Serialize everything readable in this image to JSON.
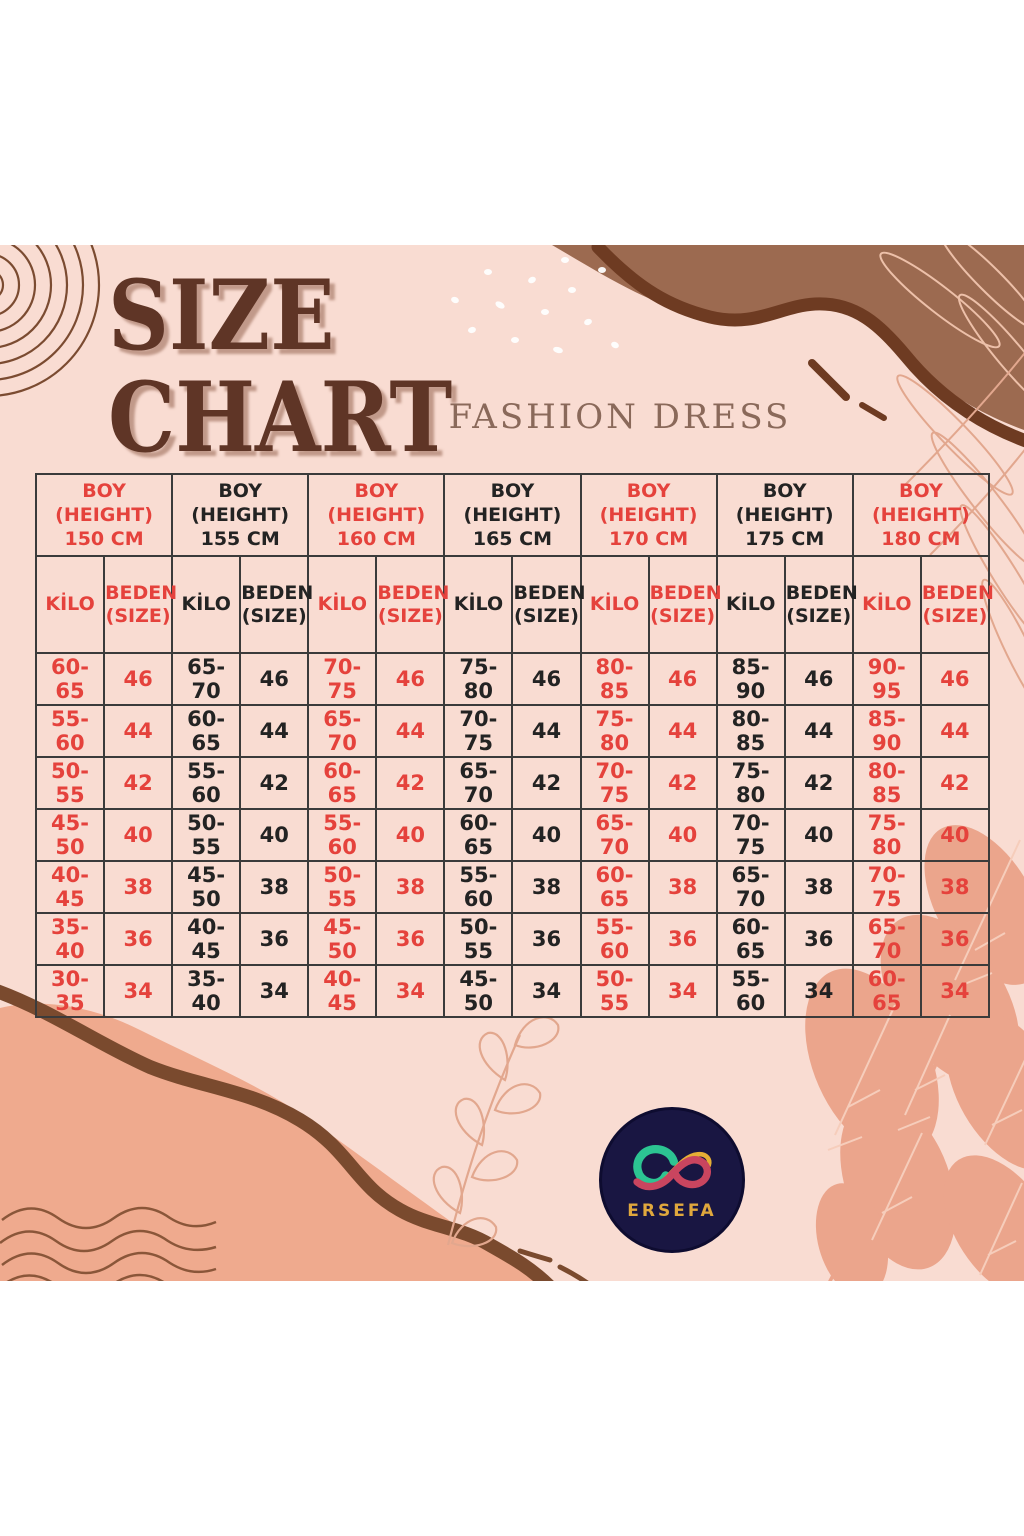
{
  "page": {
    "title_line1": "SIZE",
    "title_line2": "CHART",
    "subtitle": "FASHION DRESS"
  },
  "logo": {
    "brand": "ERSEFA"
  },
  "colors": {
    "background_pink": "#f9dcd2",
    "accent_red": "#e5423c",
    "text_black": "#232323",
    "title_brown": "#5f3526",
    "subtitle_brown": "#8a695a",
    "blob_brown": "#9c6a50",
    "stroke_brown": "#6e3b22",
    "salmon": "#efaa8e",
    "logo_navy": "#191642",
    "logo_gold": "#e0a83d"
  },
  "chart_data": {
    "type": "table",
    "title": "SIZE CHART",
    "subtitle": "FASHION DRESS",
    "sizes": [
      "46",
      "44",
      "42",
      "40",
      "38",
      "36",
      "34"
    ],
    "groups": [
      {
        "height_cm": 150,
        "color": "red",
        "header_lines": [
          "BOY",
          "(HEIGHT)",
          "150 CM"
        ],
        "kilo_label": "KİLO",
        "beden_lines": [
          "BEDEN",
          "(SIZE)"
        ],
        "kilo_values": [
          "60-65",
          "55-60",
          "50-55",
          "45-50",
          "40-45",
          "35-40",
          "30-35"
        ]
      },
      {
        "height_cm": 155,
        "color": "black",
        "header_lines": [
          "BOY",
          "(HEIGHT)",
          "155 CM"
        ],
        "kilo_label": "KİLO",
        "beden_lines": [
          "BEDEN",
          "(SIZE)"
        ],
        "kilo_values": [
          "65-70",
          "60-65",
          "55-60",
          "50-55",
          "45-50",
          "40-45",
          "35-40"
        ]
      },
      {
        "height_cm": 160,
        "color": "red",
        "header_lines": [
          "BOY",
          "(HEIGHT)",
          "160 CM"
        ],
        "kilo_label": "KİLO",
        "beden_lines": [
          "BEDEN",
          "(SIZE)"
        ],
        "kilo_values": [
          "70-75",
          "65-70",
          "60-65",
          "55-60",
          "50-55",
          "45-50",
          "40-45"
        ]
      },
      {
        "height_cm": 165,
        "color": "black",
        "header_lines": [
          "BOY",
          "(HEIGHT)",
          "165 CM"
        ],
        "kilo_label": "KİLO",
        "beden_lines": [
          "BEDEN",
          "(SIZE)"
        ],
        "kilo_values": [
          "75-80",
          "70-75",
          "65-70",
          "60-65",
          "55-60",
          "50-55",
          "45-50"
        ]
      },
      {
        "height_cm": 170,
        "color": "red",
        "header_lines": [
          "BOY",
          "(HEIGHT)",
          "170 CM"
        ],
        "kilo_label": "KİLO",
        "beden_lines": [
          "BEDEN",
          "(SIZE)"
        ],
        "kilo_values": [
          "80-85",
          "75-80",
          "70-75",
          "65-70",
          "60-65",
          "55-60",
          "50-55"
        ]
      },
      {
        "height_cm": 175,
        "color": "black",
        "header_lines": [
          "BOY",
          "(HEIGHT)",
          "175 CM"
        ],
        "kilo_label": "KİLO",
        "beden_lines": [
          "BEDEN",
          "(SIZE)"
        ],
        "kilo_values": [
          "85-90",
          "80-85",
          "75-80",
          "70-75",
          "65-70",
          "60-65",
          "55-60"
        ]
      },
      {
        "height_cm": 180,
        "color": "red",
        "header_lines": [
          "BOY",
          "(HEIGHT)",
          "180 CM"
        ],
        "kilo_label": "KİLO",
        "beden_lines": [
          "BEDEN",
          "(SIZE)"
        ],
        "kilo_values": [
          "90-95",
          "85-90",
          "80-85",
          "75-80",
          "70-75",
          "65-70",
          "60-65"
        ]
      }
    ]
  }
}
